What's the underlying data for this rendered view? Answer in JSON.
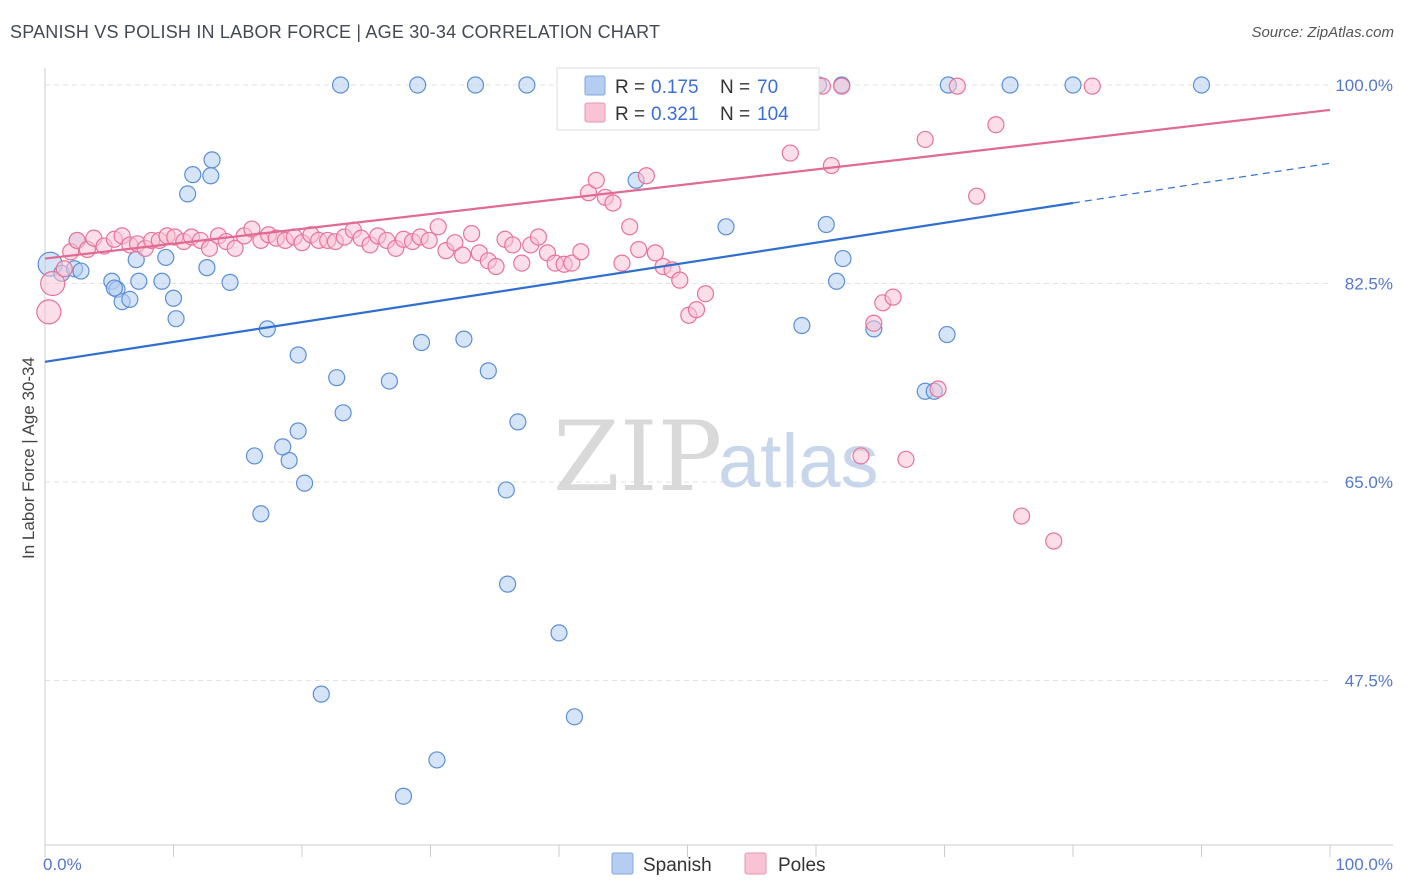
{
  "header": {
    "title": "SPANISH VS POLISH IN LABOR FORCE | AGE 30-34 CORRELATION CHART",
    "source": "Source: ZipAtlas.com"
  },
  "watermark": {
    "zip": "ZIP",
    "atlas": "atlas"
  },
  "legend": {
    "spanish": {
      "r_label": "R = ",
      "r_value": "0.175",
      "n_label": "N = ",
      "n_value": "70"
    },
    "poles": {
      "r_label": "R = ",
      "r_value": "0.321",
      "n_label": "N = ",
      "n_value": "104"
    }
  },
  "bottom_legend": {
    "spanish": "Spanish",
    "poles": "Poles"
  },
  "chart_data": {
    "type": "scatter",
    "title": "SPANISH VS POLISH IN LABOR FORCE | AGE 30-34 CORRELATION CHART",
    "xlabel": "",
    "ylabel": "In Labor Force | Age 30-34",
    "xlim": [
      0,
      100
    ],
    "ylim": [
      33,
      101.5
    ],
    "x_tick_labels": [
      "0.0%",
      "100.0%"
    ],
    "y_ticks": [
      47.5,
      65.0,
      82.5,
      100.0
    ],
    "y_tick_labels": [
      "47.5%",
      "65.0%",
      "82.5%",
      "100.0%"
    ],
    "grid": true,
    "colors": {
      "spanish": "#5b8fd8",
      "spanish_fill": "#b4cdf1",
      "poles": "#e8739b",
      "poles_fill": "#f8c3d4"
    },
    "series": [
      {
        "name": "Spanish",
        "r": 0.175,
        "n": 70,
        "trend": {
          "x0": 0,
          "y0": 75.6,
          "x1": 80,
          "y1": 89.6,
          "dashed_to_x": 100,
          "dashed_to_y": 93.1
        },
        "points": [
          [
            0.4,
            84.2
          ],
          [
            1.3,
            83.4
          ],
          [
            2.3,
            83.8
          ],
          [
            2.5,
            86.3
          ],
          [
            2.8,
            83.6
          ],
          [
            5.2,
            82.7
          ],
          [
            5.6,
            82.0
          ],
          [
            6.0,
            80.9
          ],
          [
            7.1,
            84.6
          ],
          [
            7.3,
            82.7
          ],
          [
            5.4,
            82.1
          ],
          [
            6.6,
            81.1
          ],
          [
            9.1,
            82.7
          ],
          [
            10.0,
            81.2
          ],
          [
            9.4,
            84.8
          ],
          [
            14.4,
            82.6
          ],
          [
            17.3,
            78.5
          ],
          [
            12.6,
            83.9
          ],
          [
            13.0,
            93.4
          ],
          [
            12.9,
            92.0
          ],
          [
            11.1,
            90.4
          ],
          [
            11.5,
            92.1
          ],
          [
            10.2,
            79.4
          ],
          [
            19.7,
            76.2
          ],
          [
            19.7,
            69.5
          ],
          [
            20.2,
            64.9
          ],
          [
            19.0,
            66.9
          ],
          [
            18.5,
            68.1
          ],
          [
            22.7,
            74.2
          ],
          [
            23.2,
            71.1
          ],
          [
            26.8,
            73.9
          ],
          [
            29.3,
            77.3
          ],
          [
            32.6,
            77.6
          ],
          [
            34.5,
            74.8
          ],
          [
            35.9,
            64.3
          ],
          [
            36.8,
            70.3
          ],
          [
            36.0,
            56.0
          ],
          [
            40.0,
            51.7
          ],
          [
            41.2,
            44.3
          ],
          [
            48.5,
            100.0
          ],
          [
            49.3,
            99.9
          ],
          [
            49.6,
            99.9
          ],
          [
            52.3,
            100.0
          ],
          [
            55.6,
            100.0
          ],
          [
            60.2,
            100.0
          ],
          [
            62.0,
            100.0
          ],
          [
            70.3,
            100.0
          ],
          [
            75.1,
            100.0
          ],
          [
            80.0,
            100.0
          ],
          [
            90.0,
            100.0
          ],
          [
            46.0,
            91.6
          ],
          [
            53.0,
            87.5
          ],
          [
            58.9,
            78.8
          ],
          [
            61.6,
            82.7
          ],
          [
            60.8,
            87.7
          ],
          [
            68.5,
            73.0
          ],
          [
            69.2,
            73.0
          ],
          [
            64.5,
            78.5
          ],
          [
            70.2,
            78.0
          ],
          [
            62.1,
            84.7
          ],
          [
            23.0,
            100.0
          ],
          [
            29.0,
            100.0
          ],
          [
            33.5,
            100.0
          ],
          [
            37.5,
            100.0
          ],
          [
            42.0,
            100.0
          ],
          [
            16.3,
            67.3
          ],
          [
            21.5,
            46.3
          ],
          [
            16.8,
            62.2
          ],
          [
            27.9,
            37.3
          ],
          [
            30.5,
            40.5
          ]
        ]
      },
      {
        "name": "Poles",
        "r": 0.321,
        "n": 104,
        "trend": {
          "x0": 0,
          "y0": 84.7,
          "x1": 100,
          "y1": 97.8
        },
        "points": [
          [
            0.3,
            80.0
          ],
          [
            0.6,
            82.5
          ],
          [
            1.5,
            83.8
          ],
          [
            2.0,
            85.3
          ],
          [
            2.5,
            86.3
          ],
          [
            3.3,
            85.5
          ],
          [
            3.8,
            86.5
          ],
          [
            4.6,
            85.8
          ],
          [
            5.4,
            86.4
          ],
          [
            6.0,
            86.7
          ],
          [
            6.6,
            85.9
          ],
          [
            7.2,
            86.0
          ],
          [
            7.8,
            85.6
          ],
          [
            8.3,
            86.3
          ],
          [
            8.9,
            86.3
          ],
          [
            9.5,
            86.7
          ],
          [
            10.1,
            86.6
          ],
          [
            10.8,
            86.2
          ],
          [
            11.4,
            86.6
          ],
          [
            12.1,
            86.3
          ],
          [
            12.8,
            85.6
          ],
          [
            13.5,
            86.7
          ],
          [
            14.1,
            86.2
          ],
          [
            14.8,
            85.6
          ],
          [
            15.5,
            86.7
          ],
          [
            16.1,
            87.3
          ],
          [
            16.8,
            86.3
          ],
          [
            17.4,
            86.8
          ],
          [
            18.0,
            86.5
          ],
          [
            18.7,
            86.3
          ],
          [
            19.4,
            86.6
          ],
          [
            20.0,
            86.1
          ],
          [
            20.7,
            86.8
          ],
          [
            21.3,
            86.3
          ],
          [
            22.0,
            86.3
          ],
          [
            22.6,
            86.2
          ],
          [
            23.3,
            86.6
          ],
          [
            24.0,
            87.2
          ],
          [
            24.6,
            86.5
          ],
          [
            25.3,
            85.9
          ],
          [
            25.9,
            86.7
          ],
          [
            26.6,
            86.3
          ],
          [
            27.3,
            85.6
          ],
          [
            27.9,
            86.4
          ],
          [
            28.6,
            86.2
          ],
          [
            29.2,
            86.6
          ],
          [
            29.9,
            86.3
          ],
          [
            30.6,
            87.5
          ],
          [
            31.2,
            85.4
          ],
          [
            31.9,
            86.1
          ],
          [
            32.5,
            85.0
          ],
          [
            33.2,
            86.9
          ],
          [
            33.8,
            85.2
          ],
          [
            34.5,
            84.5
          ],
          [
            35.1,
            84.0
          ],
          [
            35.8,
            86.4
          ],
          [
            36.4,
            85.9
          ],
          [
            37.1,
            84.3
          ],
          [
            37.8,
            85.9
          ],
          [
            38.4,
            86.6
          ],
          [
            39.1,
            85.2
          ],
          [
            39.7,
            84.3
          ],
          [
            40.4,
            84.2
          ],
          [
            41.0,
            84.3
          ],
          [
            41.7,
            85.3
          ],
          [
            42.3,
            90.5
          ],
          [
            42.9,
            91.6
          ],
          [
            43.6,
            90.1
          ],
          [
            44.2,
            89.6
          ],
          [
            44.9,
            84.3
          ],
          [
            45.5,
            87.5
          ],
          [
            46.2,
            85.5
          ],
          [
            46.8,
            92.0
          ],
          [
            47.5,
            85.2
          ],
          [
            48.1,
            84.0
          ],
          [
            48.8,
            83.7
          ],
          [
            49.4,
            82.8
          ],
          [
            50.1,
            79.7
          ],
          [
            50.7,
            80.2
          ],
          [
            51.4,
            81.6
          ],
          [
            52.0,
            99.9
          ],
          [
            52.7,
            99.9
          ],
          [
            53.3,
            99.9
          ],
          [
            54.0,
            99.9
          ],
          [
            55.6,
            98.5
          ],
          [
            57.0,
            99.9
          ],
          [
            58.0,
            94.0
          ],
          [
            59.0,
            99.9
          ],
          [
            60.5,
            99.9
          ],
          [
            61.2,
            92.9
          ],
          [
            62.0,
            99.9
          ],
          [
            63.5,
            67.3
          ],
          [
            64.5,
            79.0
          ],
          [
            65.2,
            80.8
          ],
          [
            66.0,
            81.3
          ],
          [
            67.0,
            67.0
          ],
          [
            68.5,
            95.2
          ],
          [
            69.5,
            73.2
          ],
          [
            71.0,
            99.9
          ],
          [
            72.5,
            90.2
          ],
          [
            74.0,
            96.5
          ],
          [
            76.0,
            62.0
          ],
          [
            78.5,
            59.8
          ],
          [
            81.5,
            99.9
          ]
        ]
      }
    ]
  }
}
